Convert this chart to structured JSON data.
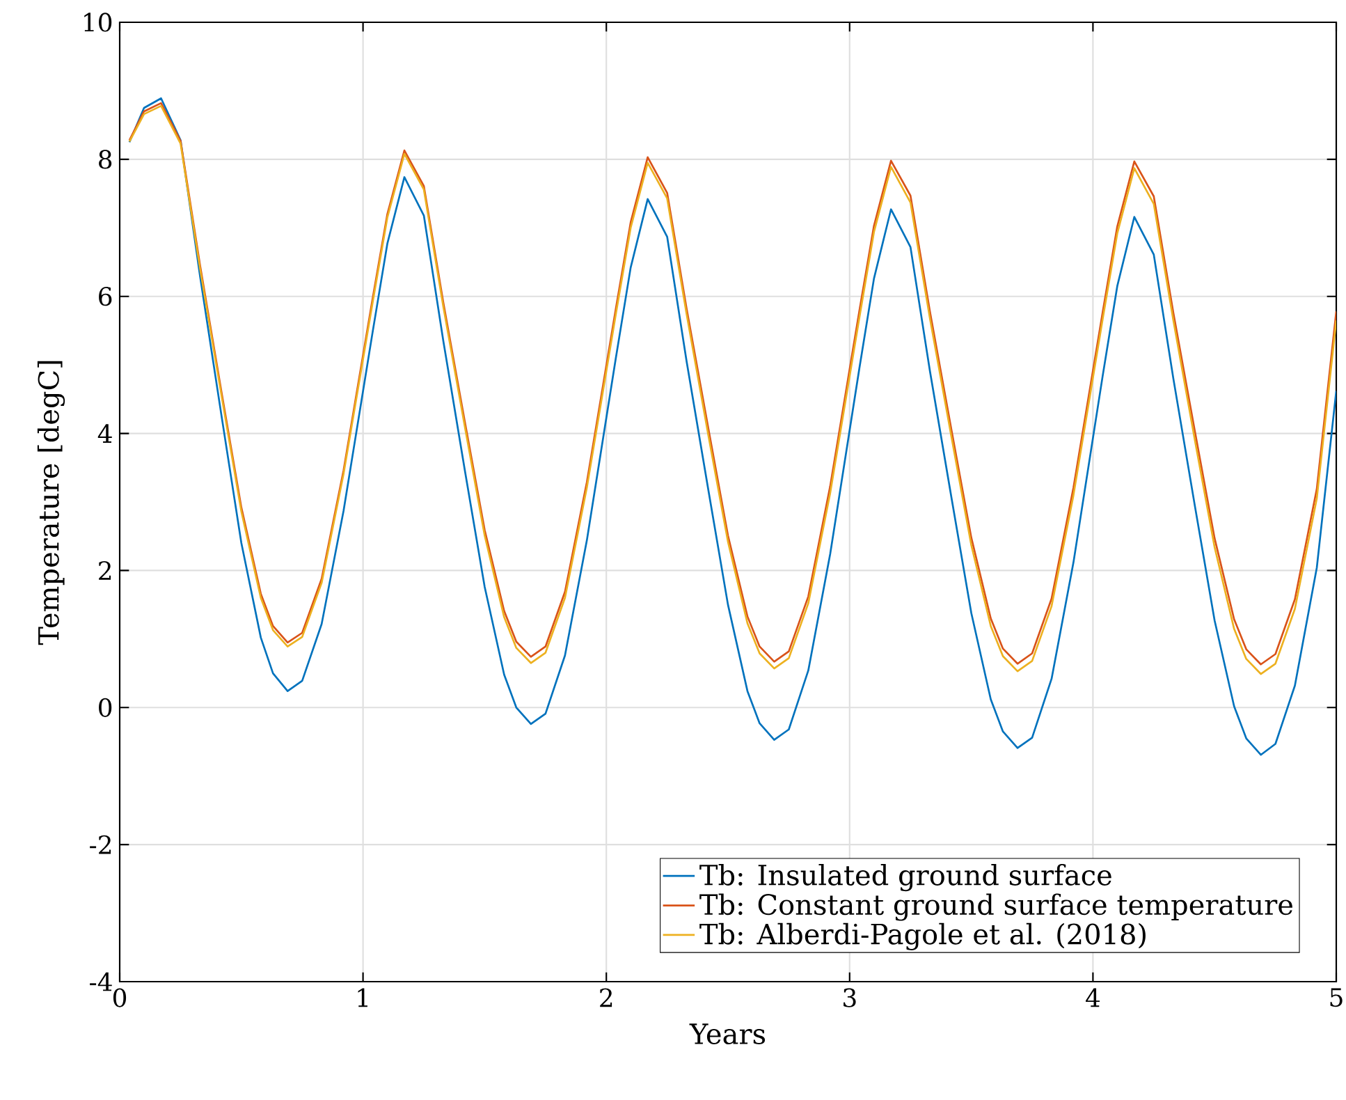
{
  "chart_data": {
    "type": "line",
    "xlabel": "Years",
    "ylabel": "Temperature [degC]",
    "x": [
      0.04,
      0.1,
      0.17,
      0.25,
      0.33,
      0.42,
      0.5,
      0.58,
      0.63,
      0.69,
      0.75,
      0.83,
      0.92,
      1.04,
      1.1,
      1.17,
      1.25,
      1.33,
      1.42,
      1.5,
      1.58,
      1.63,
      1.69,
      1.75,
      1.83,
      1.92,
      2.04,
      2.1,
      2.17,
      2.25,
      2.33,
      2.42,
      2.5,
      2.58,
      2.63,
      2.69,
      2.75,
      2.83,
      2.92,
      3.04,
      3.1,
      3.17,
      3.25,
      3.33,
      3.42,
      3.5,
      3.58,
      3.63,
      3.69,
      3.75,
      3.83,
      3.92,
      4.04,
      4.1,
      4.17,
      4.25,
      4.33,
      4.42,
      4.5,
      4.58,
      4.63,
      4.69,
      4.75,
      4.83,
      4.92,
      5.0
    ],
    "series": [
      {
        "name": "Tb: Insulated ground surface",
        "color": "#0072bd",
        "values": [
          8.25,
          8.75,
          8.89,
          8.28,
          6.3,
          4.22,
          2.4,
          1.02,
          0.5,
          0.24,
          0.39,
          1.22,
          2.87,
          5.49,
          6.77,
          7.74,
          7.18,
          5.35,
          3.43,
          1.76,
          0.48,
          0.0,
          -0.24,
          -0.09,
          0.76,
          2.44,
          5.12,
          6.42,
          7.42,
          6.87,
          5.05,
          3.16,
          1.5,
          0.24,
          -0.23,
          -0.47,
          -0.32,
          0.54,
          2.24,
          4.95,
          6.26,
          7.27,
          6.72,
          4.91,
          3.03,
          1.38,
          0.12,
          -0.35,
          -0.59,
          -0.44,
          0.42,
          2.12,
          4.84,
          6.15,
          7.16,
          6.61,
          4.81,
          2.92,
          1.27,
          0.02,
          -0.45,
          -0.69,
          -0.53,
          0.32,
          2.04,
          4.62
        ]
      },
      {
        "name": "Tb: Constant ground surface temperature",
        "color": "#d95319",
        "values": [
          8.28,
          8.7,
          8.82,
          8.27,
          6.46,
          4.57,
          2.92,
          1.66,
          1.19,
          0.95,
          1.09,
          1.88,
          3.46,
          5.98,
          7.2,
          8.13,
          7.61,
          5.91,
          4.14,
          2.59,
          1.41,
          0.96,
          0.74,
          0.89,
          1.69,
          3.29,
          5.84,
          7.08,
          8.03,
          7.51,
          5.82,
          4.06,
          2.51,
          1.33,
          0.89,
          0.67,
          0.82,
          1.62,
          3.23,
          5.79,
          7.03,
          7.98,
          7.47,
          5.78,
          4.02,
          2.48,
          1.3,
          0.86,
          0.64,
          0.79,
          1.59,
          3.21,
          5.77,
          7.02,
          7.97,
          7.46,
          5.77,
          4.01,
          2.47,
          1.29,
          0.85,
          0.63,
          0.78,
          1.58,
          3.19,
          5.78
        ]
      },
      {
        "name": "Tb: Alberdi-Pagole et al. (2018)",
        "color": "#edb120",
        "values": [
          8.26,
          8.66,
          8.78,
          8.23,
          6.41,
          4.52,
          2.86,
          1.6,
          1.13,
          0.89,
          1.03,
          1.82,
          3.41,
          5.92,
          7.15,
          8.08,
          7.56,
          5.85,
          4.07,
          2.51,
          1.32,
          0.87,
          0.65,
          0.8,
          1.6,
          3.21,
          5.76,
          7.0,
          7.95,
          7.43,
          5.74,
          3.96,
          2.42,
          1.23,
          0.79,
          0.57,
          0.72,
          1.52,
          3.13,
          5.69,
          6.94,
          7.89,
          7.37,
          5.68,
          3.92,
          2.37,
          1.19,
          0.75,
          0.53,
          0.68,
          1.48,
          3.1,
          5.67,
          6.92,
          7.87,
          7.35,
          5.66,
          3.88,
          2.34,
          1.15,
          0.71,
          0.49,
          0.64,
          1.44,
          3.05,
          5.65
        ]
      }
    ],
    "xlim": [
      0,
      5
    ],
    "ylim": [
      -4,
      10
    ],
    "xticks": [
      0,
      1,
      2,
      3,
      4,
      5
    ],
    "yticks": [
      -4,
      -2,
      0,
      2,
      4,
      6,
      8,
      10
    ],
    "grid": true,
    "legend": "bottom right"
  }
}
